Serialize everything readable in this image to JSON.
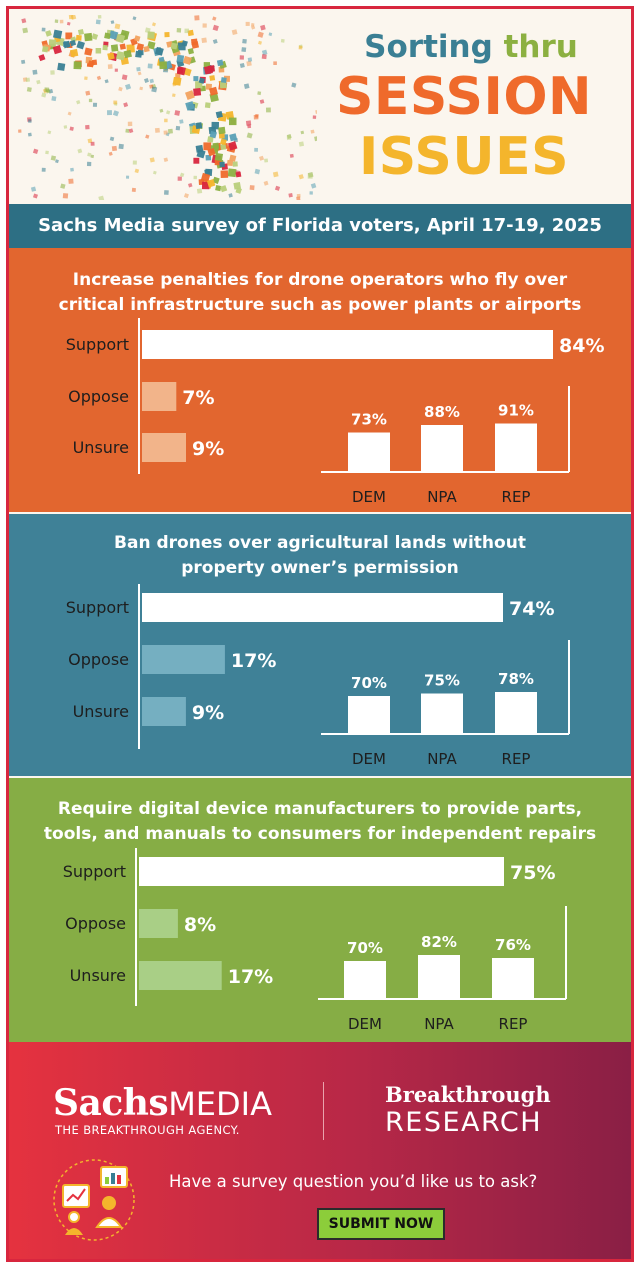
{
  "header": {
    "title_line1_a": "Sorting",
    "title_line1_b": "thru",
    "title_line2": "SESSION",
    "title_line3": "ISSUES",
    "survey_label": "Sachs Media survey of Florida voters, April 17-19, 2025"
  },
  "colors": {
    "orange": "#e2662f",
    "blue": "#3f8197",
    "green": "#86ad45",
    "title_blue": "#3a7f94",
    "title_orange": "#ef6a2b",
    "title_yellow": "#f4b52c",
    "footer_red": "#d82c40",
    "submit_green": "#8ccd3a"
  },
  "chart_data": [
    {
      "type": "bar",
      "title": "Increase penalties for drone operators who fly over critical infrastructure such as power plants or airports",
      "title_lines": [
        "Increase penalties for drone operators who fly over",
        "critical infrastructure such as power plants or airports"
      ],
      "categories": [
        "Support",
        "Oppose",
        "Unsure"
      ],
      "values": [
        84,
        7,
        9
      ],
      "value_labels": [
        "84%",
        "7%",
        "9%"
      ],
      "party_breakdown": {
        "categories": [
          "DEM",
          "NPA",
          "REP"
        ],
        "values": [
          73,
          88,
          91
        ],
        "value_labels": [
          "73%",
          "88%",
          "91%"
        ]
      }
    },
    {
      "type": "bar",
      "title": "Ban drones over agricultural lands without property owner's permission",
      "title_lines": [
        "Ban drones over agricultural lands without",
        "property owner’s permission"
      ],
      "categories": [
        "Support",
        "Oppose",
        "Unsure"
      ],
      "values": [
        74,
        17,
        9
      ],
      "value_labels": [
        "74%",
        "17%",
        "9%"
      ],
      "party_breakdown": {
        "categories": [
          "DEM",
          "NPA",
          "REP"
        ],
        "values": [
          70,
          75,
          78
        ],
        "value_labels": [
          "70%",
          "75%",
          "78%"
        ]
      }
    },
    {
      "type": "bar",
      "title": "Require digital device manufacturers to provide parts, tools, and manuals to consumers for independent repairs",
      "title_lines": [
        "Require digital device manufacturers to provide parts,",
        "tools, and manuals to consumers for independent repairs"
      ],
      "categories": [
        "Support",
        "Oppose",
        "Unsure"
      ],
      "values": [
        75,
        8,
        17
      ],
      "value_labels": [
        "75%",
        "8%",
        "17%"
      ],
      "party_breakdown": {
        "categories": [
          "DEM",
          "NPA",
          "REP"
        ],
        "values": [
          70,
          82,
          76
        ],
        "value_labels": [
          "70%",
          "82%",
          "76%"
        ]
      }
    }
  ],
  "footer": {
    "brand_sachs": "Sachs",
    "brand_media": "MEDIA",
    "tagline": "THE BREAKTHROUGH AGENCY.",
    "breakthrough": "Breakthrough",
    "research": "RESEARCH",
    "prompt": "Have a survey question you’d like us to ask?",
    "submit_label": "SUBMIT NOW",
    "icon": "survey-people-icon"
  }
}
